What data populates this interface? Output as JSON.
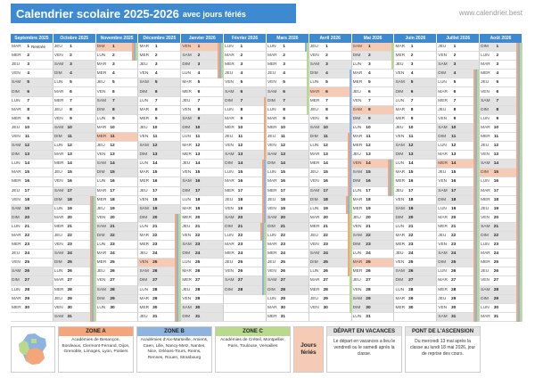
{
  "header": {
    "title_main": "Calendrier scolaire 2025-2026",
    "title_sub": "avec jours fériés",
    "site": "www.calendrier.best"
  },
  "colors": {
    "accent": "#3d8ad0",
    "zone_a": "#f4a57a",
    "zone_b": "#8fb3df",
    "zone_c": "#b9d98c",
    "ferie": "#f6cbb5",
    "weekend": "#e3e3e3"
  },
  "months": [
    {
      "label": "Septembre 2025",
      "start": 1,
      "days": 30,
      "holidays": [],
      "event": {
        "1": "Rentrée"
      },
      "bars": []
    },
    {
      "label": "Octobre 2025",
      "start": 3,
      "days": 31,
      "holidays": [],
      "event": {},
      "bars": [
        {
          "from": 18,
          "to": 31,
          "zones": [
            "za",
            "zb",
            "zc"
          ]
        }
      ]
    },
    {
      "label": "Novembre 2025",
      "start": 6,
      "days": 30,
      "holidays": [
        1,
        11
      ],
      "event": {},
      "bars": [
        {
          "from": 1,
          "to": 2,
          "zones": [
            "za",
            "zb",
            "zc"
          ]
        }
      ]
    },
    {
      "label": "Décembre 2025",
      "start": 1,
      "days": 31,
      "holidays": [
        25
      ],
      "event": {},
      "bars": [
        {
          "from": 20,
          "to": 31,
          "zones": [
            "za",
            "zb",
            "zc"
          ]
        }
      ]
    },
    {
      "label": "Janvier 2026",
      "start": 4,
      "days": 31,
      "holidays": [
        1
      ],
      "event": {},
      "bars": [
        {
          "from": 1,
          "to": 4,
          "zones": [
            "za",
            "zb",
            "zc"
          ]
        }
      ]
    },
    {
      "label": "Février 2026",
      "start": 0,
      "days": 28,
      "holidays": [],
      "event": {},
      "bars": [
        {
          "from": 7,
          "to": 22,
          "zones": [
            "za"
          ]
        },
        {
          "from": 14,
          "to": 28,
          "zones": [
            "zb"
          ]
        },
        {
          "from": 21,
          "to": 28,
          "zones": [
            "zc"
          ]
        }
      ]
    },
    {
      "label": "Mars 2026",
      "start": 0,
      "days": 31,
      "holidays": [],
      "event": {},
      "bars": [
        {
          "from": 1,
          "to": 8,
          "zones": [
            "zc"
          ]
        },
        {
          "from": 1,
          "to": 1,
          "zones": [
            "zb"
          ]
        }
      ]
    },
    {
      "label": "Avril 2026",
      "start": 3,
      "days": 30,
      "holidays": [
        6
      ],
      "event": {},
      "bars": [
        {
          "from": 4,
          "to": 19,
          "zones": [
            "zb"
          ]
        },
        {
          "from": 11,
          "to": 26,
          "zones": [
            "za"
          ]
        },
        {
          "from": 18,
          "to": 30,
          "zones": [
            "zc"
          ]
        }
      ]
    },
    {
      "label": "Mai 2026",
      "start": 5,
      "days": 31,
      "holidays": [
        1,
        8,
        14,
        25
      ],
      "event": {},
      "bars": [
        {
          "from": 1,
          "to": 3,
          "zones": [
            "zc"
          ]
        },
        {
          "from": 14,
          "to": 17,
          "zones": [
            "za",
            "zb",
            "zc"
          ]
        }
      ]
    },
    {
      "label": "Juin 2026",
      "start": 1,
      "days": 30,
      "holidays": [],
      "event": {},
      "bars": []
    },
    {
      "label": "Juillet 2026",
      "start": 3,
      "days": 31,
      "holidays": [
        14
      ],
      "event": {},
      "bars": [
        {
          "from": 4,
          "to": 31,
          "zones": [
            "za",
            "zb",
            "zc"
          ]
        }
      ]
    },
    {
      "label": "Août 2026",
      "start": 6,
      "days": 31,
      "holidays": [
        15
      ],
      "event": {},
      "bars": [
        {
          "from": 1,
          "to": 31,
          "zones": [
            "za",
            "zb",
            "zc"
          ]
        }
      ]
    }
  ],
  "day_names": [
    "LUN",
    "MAR",
    "MER",
    "JEU",
    "VEN",
    "SAM",
    "DIM"
  ],
  "legend": {
    "zone_a": {
      "title": "ZONE A",
      "text": "Académies de Besançon, Bordeaux, Clermont-Ferrand, Dijon, Grenoble, Limoges, Lyon, Poitiers"
    },
    "zone_b": {
      "title": "ZONE B",
      "text": "Académies d'Aix-Marseille, Amiens, Caen, Lille, Nancy-Metz, Nantes, Nice, Orléans-Tours, Reims, Rennes, Rouen, Strasbourg"
    },
    "zone_c": {
      "title": "ZONE C",
      "text": "Académies de Créteil, Montpellier, Paris, Toulouse, Versailles"
    },
    "feries": "Jours fériés",
    "depart": {
      "title": "DÉPART EN VACANCES",
      "text": "Le départ en vacances a lieu le vendredi ou le samedi après la classe."
    },
    "pont": {
      "title": "PONT DE L'ASCENSION",
      "text": "Du mercredi 13 mai après la classe au lundi 18 mai 2026, jour de reprise des cours."
    }
  }
}
